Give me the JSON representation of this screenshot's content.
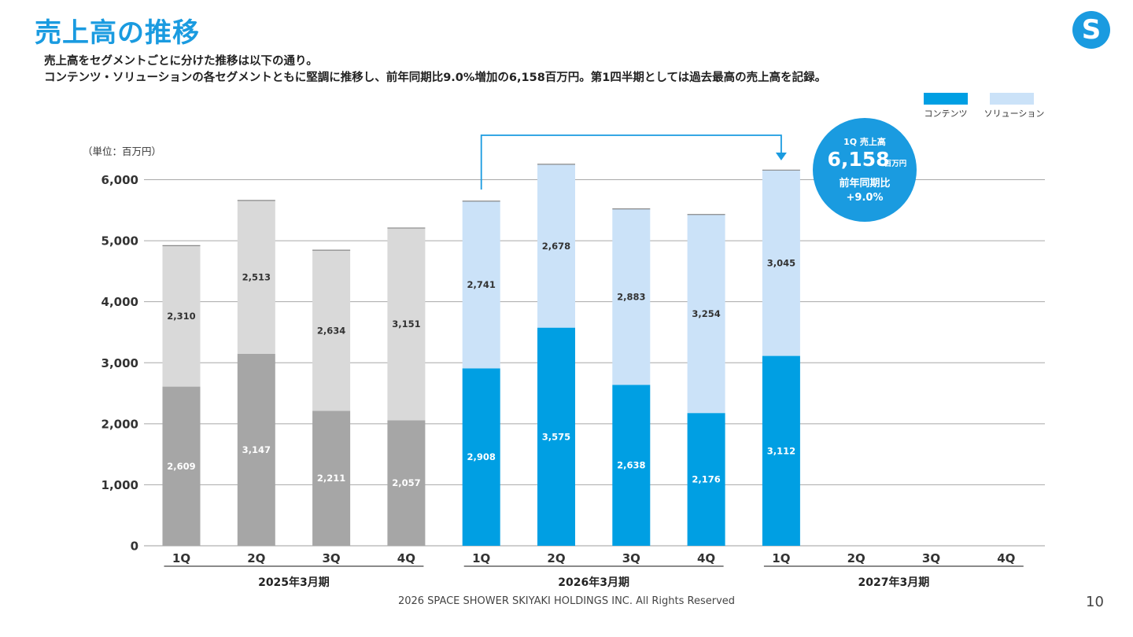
{
  "header": {
    "title": "売上高の推移",
    "desc1": "売上高をセグメントごとに分けた推移は以下の通り。",
    "desc2": "コンテンツ・ソリューションの各セグメントともに堅調に推移し、前年同期比9.0%増加の6,158百万円。第1四半期としては過去最高の売上高を記録。",
    "logo_letter": "S"
  },
  "footer": {
    "copyright": "2026 SPACE SHOWER SKIYAKI HOLDINGS INC. All Rights Reserved",
    "page_number": "10"
  },
  "callout": {
    "line1": "1Q 売上高",
    "value": "6,158",
    "unit": "百万円",
    "line3": "前年同期比",
    "line4": "+9.0%"
  },
  "chart_data": {
    "type": "bar",
    "stacked": true,
    "unit_label": "（単位：百万円）",
    "ylim": [
      0,
      6000
    ],
    "yticks": [
      "0",
      "1,000",
      "2,000",
      "3,000",
      "4,000",
      "5,000",
      "6,000"
    ],
    "categories": [
      "1Q",
      "2Q",
      "3Q",
      "4Q",
      "1Q",
      "2Q",
      "3Q",
      "4Q",
      "1Q",
      "2Q",
      "3Q",
      "4Q"
    ],
    "groups": [
      {
        "label": "2025年3月期"
      },
      {
        "label": "2026年3月期"
      },
      {
        "label": "2027年3月期"
      }
    ],
    "legend": [
      {
        "name": "コンテンツ",
        "color": "#009fe3"
      },
      {
        "name": "ソリューション",
        "color": "#cbe2f8"
      }
    ],
    "legend_position": "top-right",
    "grid": true,
    "series": [
      {
        "name": "コンテンツ",
        "values": [
          2609,
          3147,
          2211,
          2057,
          2908,
          3575,
          2638,
          2176,
          3112,
          null,
          null,
          null
        ],
        "labels": [
          "2,609",
          "3,147",
          "2,211",
          "2,057",
          "2,908",
          "3,575",
          "2,638",
          "2,176",
          "3,112",
          "",
          "",
          ""
        ]
      },
      {
        "name": "ソリューション",
        "values": [
          2310,
          2513,
          2634,
          3151,
          2741,
          2678,
          2883,
          3254,
          3045,
          null,
          null,
          null
        ],
        "labels": [
          "2,310",
          "2,513",
          "2,634",
          "3,151",
          "2,741",
          "2,678",
          "2,883",
          "3,254",
          "3,045",
          "",
          "",
          ""
        ]
      }
    ],
    "colors": {
      "prior_bottom": "#a6a6a6",
      "prior_top": "#d9d9d9",
      "bottom": "#009fe3",
      "top": "#cbe2f8",
      "accent": "#1a9be0"
    }
  }
}
